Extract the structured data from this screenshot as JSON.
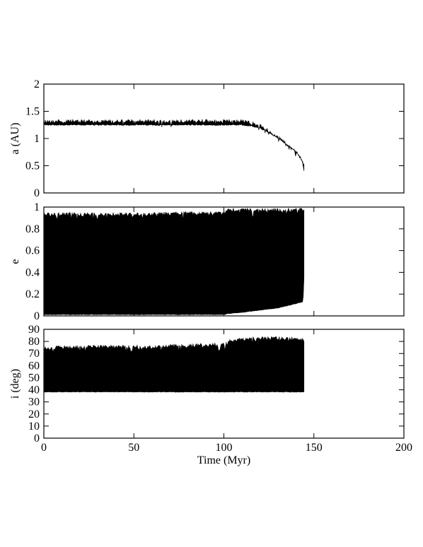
{
  "chart_data": [
    {
      "type": "area",
      "ylabel": "a (AU)",
      "xlim": [
        0,
        200
      ],
      "ylim": [
        0,
        2
      ],
      "x_ticks": [
        0,
        50,
        100,
        150,
        200
      ],
      "y_ticks": [
        0,
        0.5,
        1,
        1.5,
        2
      ],
      "y_tick_labels": [
        "0",
        "0.5",
        "1",
        "1.5",
        "2"
      ],
      "show_x_tick_labels": false,
      "grid": false,
      "series": [
        {
          "color": "#000000",
          "x": [
            0,
            20,
            40,
            60,
            80,
            100,
            110,
            115,
            120,
            125,
            130,
            135,
            140,
            143,
            144,
            144.5
          ],
          "y_min": [
            1.24,
            1.24,
            1.24,
            1.24,
            1.24,
            1.24,
            1.24,
            1.22,
            1.18,
            1.1,
            1.0,
            0.88,
            0.75,
            0.62,
            0.5,
            0.4
          ],
          "y_max": [
            1.35,
            1.35,
            1.35,
            1.35,
            1.35,
            1.35,
            1.35,
            1.32,
            1.27,
            1.17,
            1.06,
            0.93,
            0.79,
            0.66,
            0.58,
            0.55
          ]
        }
      ]
    },
    {
      "type": "area",
      "ylabel": "e",
      "xlim": [
        0,
        200
      ],
      "ylim": [
        0,
        1
      ],
      "x_ticks": [
        0,
        50,
        100,
        150,
        200
      ],
      "y_ticks": [
        0,
        0.2,
        0.4,
        0.6,
        0.8,
        1
      ],
      "y_tick_labels": [
        "0",
        "0.2",
        "0.4",
        "0.6",
        "0.8",
        "1"
      ],
      "show_x_tick_labels": false,
      "grid": false,
      "series": [
        {
          "color": "#000000",
          "x": [
            0,
            20,
            40,
            60,
            80,
            100,
            103,
            110,
            120,
            130,
            140,
            144,
            144.5
          ],
          "y_min": [
            0.01,
            0.01,
            0.01,
            0.01,
            0.01,
            0.01,
            0.02,
            0.03,
            0.05,
            0.07,
            0.11,
            0.13,
            0.35
          ],
          "y_max": [
            0.95,
            0.95,
            0.95,
            0.95,
            0.96,
            0.96,
            0.99,
            0.99,
            0.99,
            0.99,
            0.99,
            0.99,
            0.99
          ]
        }
      ]
    },
    {
      "type": "area",
      "ylabel": "i (deg)",
      "xlabel": "Time (Myr)",
      "xlim": [
        0,
        200
      ],
      "ylim": [
        0,
        90
      ],
      "x_ticks": [
        0,
        50,
        100,
        150,
        200
      ],
      "x_tick_labels": [
        "0",
        "50",
        "100",
        "150",
        "200"
      ],
      "y_ticks": [
        0,
        10,
        20,
        30,
        40,
        50,
        60,
        70,
        80,
        90
      ],
      "y_tick_labels": [
        "0",
        "10",
        "20",
        "30",
        "40",
        "50",
        "60",
        "70",
        "80",
        "90"
      ],
      "show_x_tick_labels": true,
      "grid": false,
      "series": [
        {
          "color": "#000000",
          "x": [
            0,
            20,
            40,
            60,
            80,
            100,
            102,
            103,
            110,
            120,
            130,
            140,
            144,
            144.5
          ],
          "y_min": [
            38,
            38,
            38,
            38,
            38,
            38,
            38,
            38,
            38,
            38,
            38,
            38,
            38,
            38
          ],
          "y_max": [
            76,
            77,
            77,
            77,
            78,
            79,
            80,
            82,
            83,
            84,
            84,
            84,
            83,
            83
          ]
        }
      ]
    }
  ]
}
